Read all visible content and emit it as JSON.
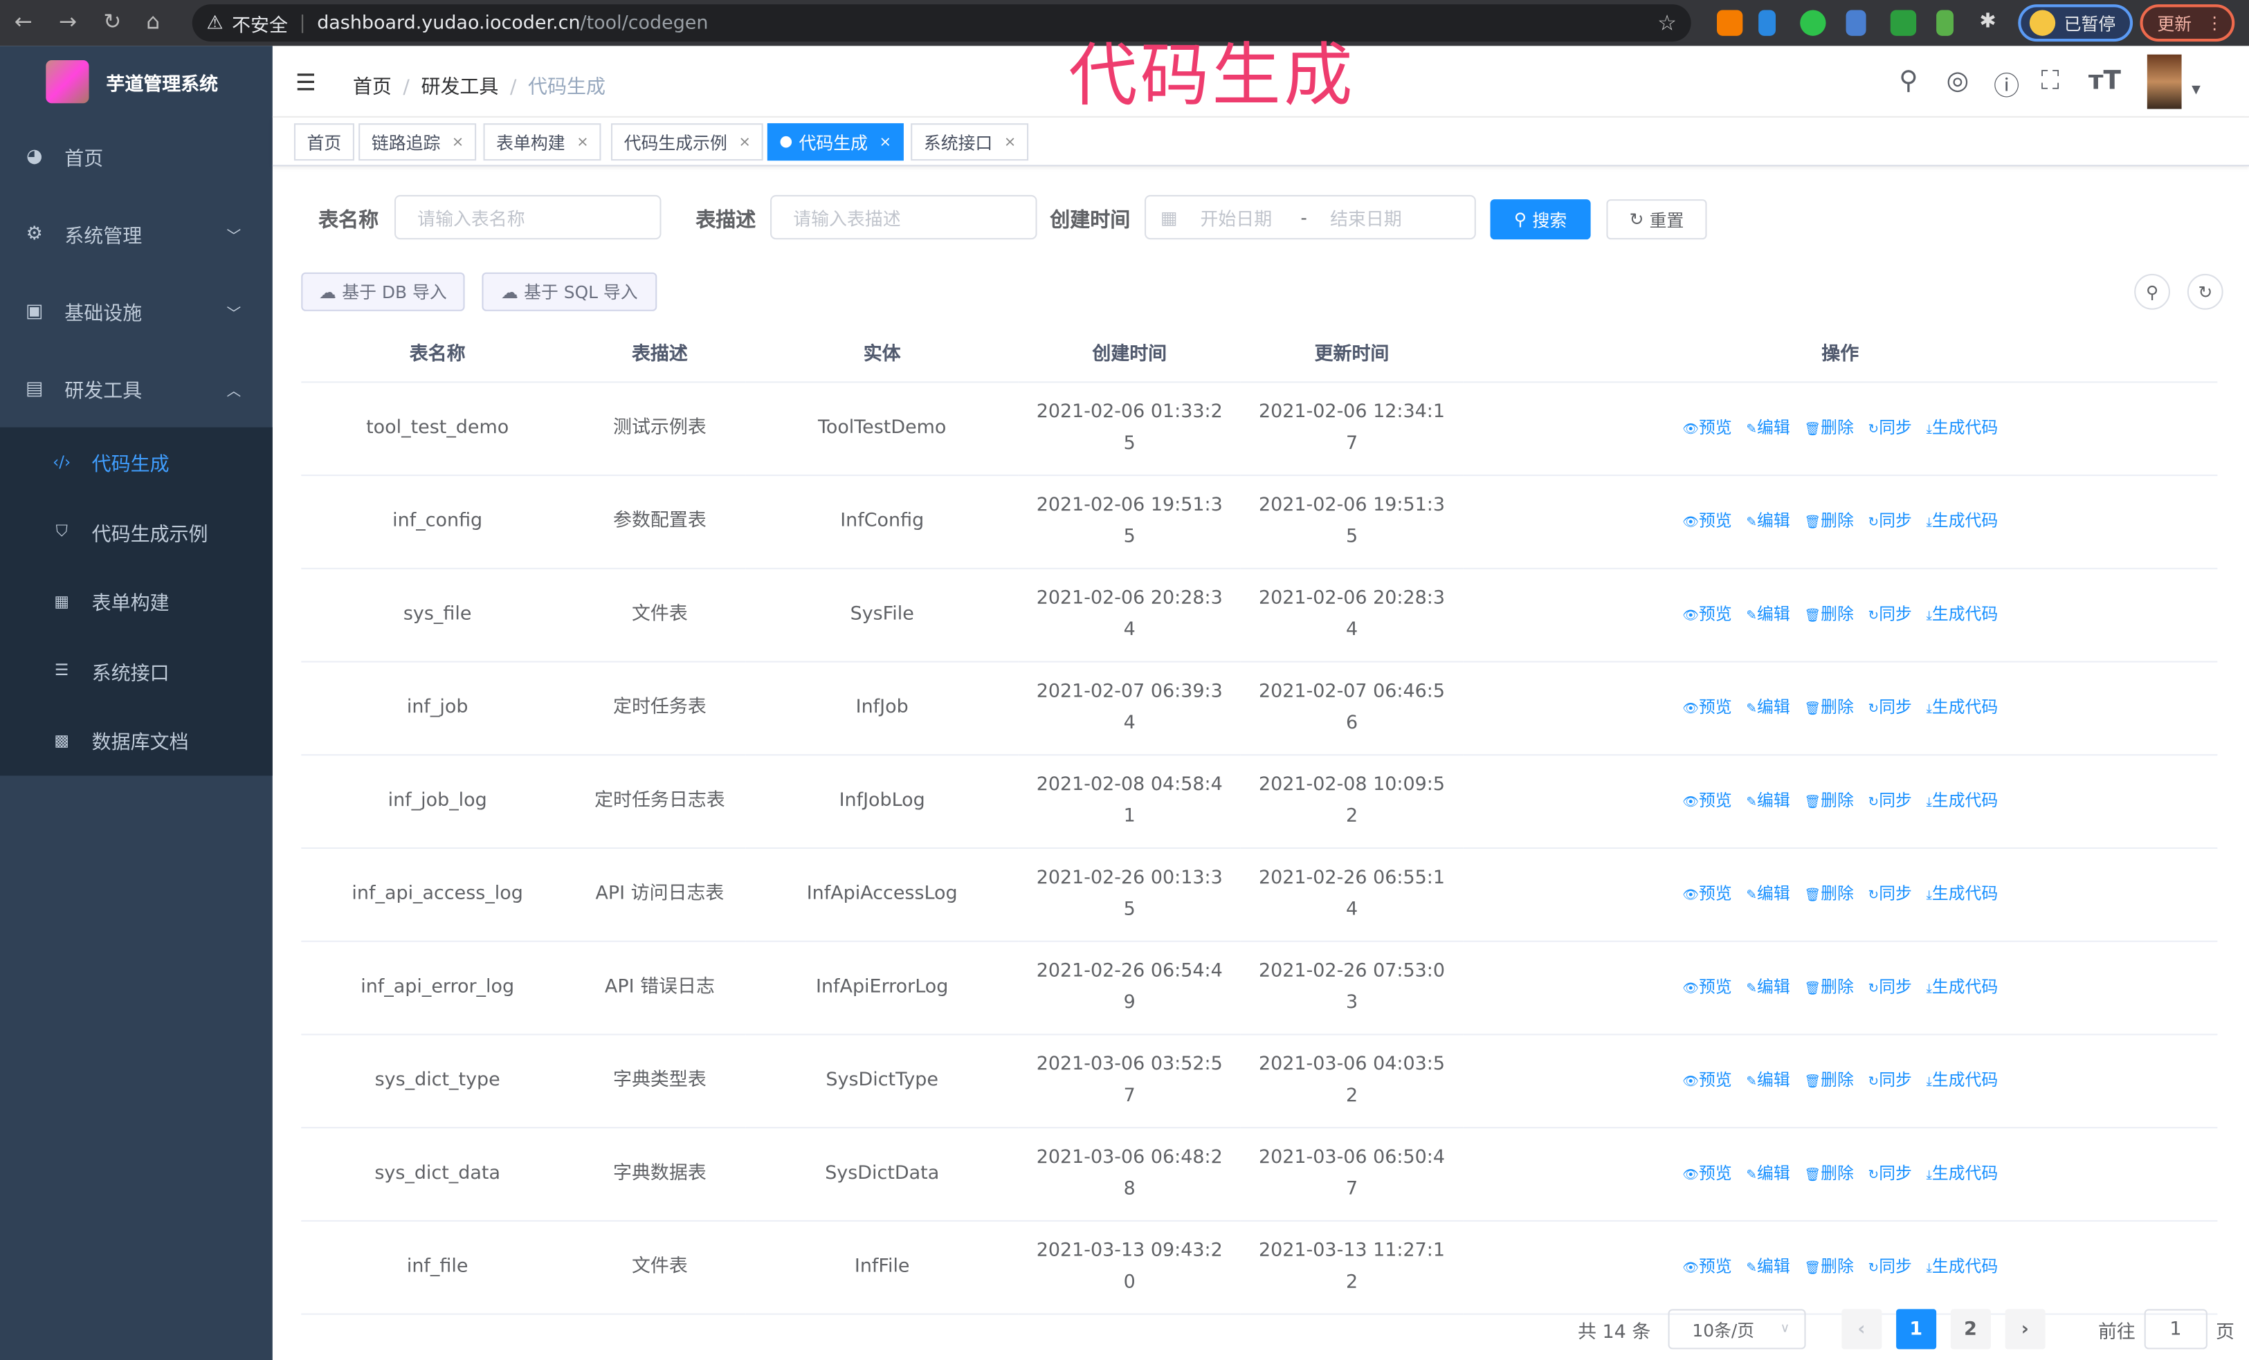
{
  "browser": {
    "security": "不安全",
    "host": "dashboard.yudao.iocoder.cn",
    "path": "/tool/codegen",
    "paused": "已暂停",
    "update": "更新"
  },
  "overlay_title": "代码生成",
  "sidebar": {
    "title": "芋道管理系统",
    "items": [
      {
        "label": "首页",
        "icon": "dashboard-icon"
      },
      {
        "label": "系统管理",
        "icon": "gear-icon",
        "chevron": "down"
      },
      {
        "label": "基础设施",
        "icon": "monitor-icon",
        "chevron": "down"
      },
      {
        "label": "研发工具",
        "icon": "toolbox-icon",
        "chevron": "up"
      }
    ],
    "subitems": [
      {
        "label": "代码生成",
        "icon": "code-icon",
        "active": true
      },
      {
        "label": "代码生成示例",
        "icon": "shield-icon"
      },
      {
        "label": "表单构建",
        "icon": "form-icon"
      },
      {
        "label": "系统接口",
        "icon": "list-icon"
      },
      {
        "label": "数据库文档",
        "icon": "table-icon"
      }
    ]
  },
  "breadcrumb": [
    "首页",
    "研发工具",
    "代码生成"
  ],
  "tags": [
    {
      "label": "首页"
    },
    {
      "label": "链路追踪"
    },
    {
      "label": "表单构建"
    },
    {
      "label": "代码生成示例"
    },
    {
      "label": "代码生成",
      "active": true
    },
    {
      "label": "系统接口"
    }
  ],
  "filters": {
    "name_label": "表名称",
    "name_placeholder": "请输入表名称",
    "desc_label": "表描述",
    "desc_placeholder": "请输入表描述",
    "time_label": "创建时间",
    "start_placeholder": "开始日期",
    "range_sep": "-",
    "end_placeholder": "结束日期",
    "search": "搜索",
    "reset": "重置"
  },
  "toolbar": {
    "import_db": "基于 DB 导入",
    "import_sql": "基于 SQL 导入"
  },
  "table": {
    "headers": [
      "表名称",
      "表描述",
      "实体",
      "创建时间",
      "更新时间",
      "操作"
    ],
    "actions": [
      "预览",
      "编辑",
      "删除",
      "同步",
      "生成代码"
    ],
    "rows": [
      [
        "tool_test_demo",
        "测试示例表",
        "ToolTestDemo",
        "2021-02-06 01:33:25",
        "2021-02-06 12:34:17"
      ],
      [
        "inf_config",
        "参数配置表",
        "InfConfig",
        "2021-02-06 19:51:35",
        "2021-02-06 19:51:35"
      ],
      [
        "sys_file",
        "文件表",
        "SysFile",
        "2021-02-06 20:28:34",
        "2021-02-06 20:28:34"
      ],
      [
        "inf_job",
        "定时任务表",
        "InfJob",
        "2021-02-07 06:39:34",
        "2021-02-07 06:46:56"
      ],
      [
        "inf_job_log",
        "定时任务日志表",
        "InfJobLog",
        "2021-02-08 04:58:41",
        "2021-02-08 10:09:52"
      ],
      [
        "inf_api_access_log",
        "API 访问日志表",
        "InfApiAccessLog",
        "2021-02-26 00:13:35",
        "2021-02-26 06:55:14"
      ],
      [
        "inf_api_error_log",
        "API 错误日志",
        "InfApiErrorLog",
        "2021-02-26 06:54:49",
        "2021-02-26 07:53:03"
      ],
      [
        "sys_dict_type",
        "字典类型表",
        "SysDictType",
        "2021-03-06 03:52:57",
        "2021-03-06 04:03:52"
      ],
      [
        "sys_dict_data",
        "字典数据表",
        "SysDictData",
        "2021-03-06 06:48:28",
        "2021-03-06 06:50:47"
      ],
      [
        "inf_file",
        "文件表",
        "InfFile",
        "2021-03-13 09:43:20",
        "2021-03-13 11:27:12"
      ]
    ]
  },
  "pagination": {
    "total": "共 14 条",
    "page_size": "10条/页",
    "pages": [
      "1",
      "2"
    ],
    "current": "1",
    "goto_label": "前往",
    "goto_value": "1",
    "page_unit": "页"
  },
  "colors": {
    "primary": "#1890ff",
    "sidebar": "#304156",
    "overlay": "#ee3c6e"
  }
}
